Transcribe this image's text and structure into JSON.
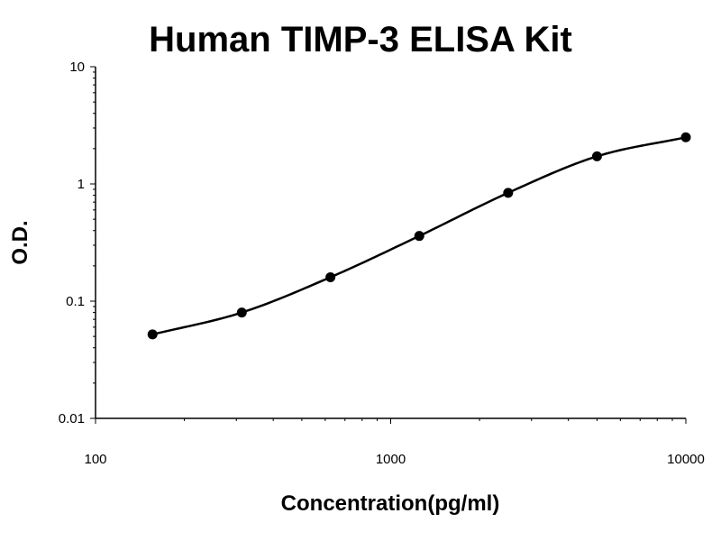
{
  "chart_data": {
    "type": "scatter",
    "title": "Human TIMP-3 ELISA Kit",
    "xlabel": "Concentration(pg/ml)",
    "ylabel": "O.D.",
    "x_scale": "log",
    "y_scale": "log",
    "xlim": [
      100,
      10000
    ],
    "ylim": [
      0.01,
      10
    ],
    "x_ticks": [
      "100",
      "1000",
      "10000"
    ],
    "y_ticks": [
      "10",
      "1",
      "0.1",
      "0.01"
    ],
    "grid": false,
    "legend": "none",
    "series": [
      {
        "x": [
          156,
          313,
          625,
          1250,
          2500,
          5000,
          10000
        ],
        "y": [
          0.052,
          0.08,
          0.16,
          0.36,
          0.84,
          1.72,
          2.5
        ],
        "fit": "smooth-curve"
      }
    ]
  }
}
